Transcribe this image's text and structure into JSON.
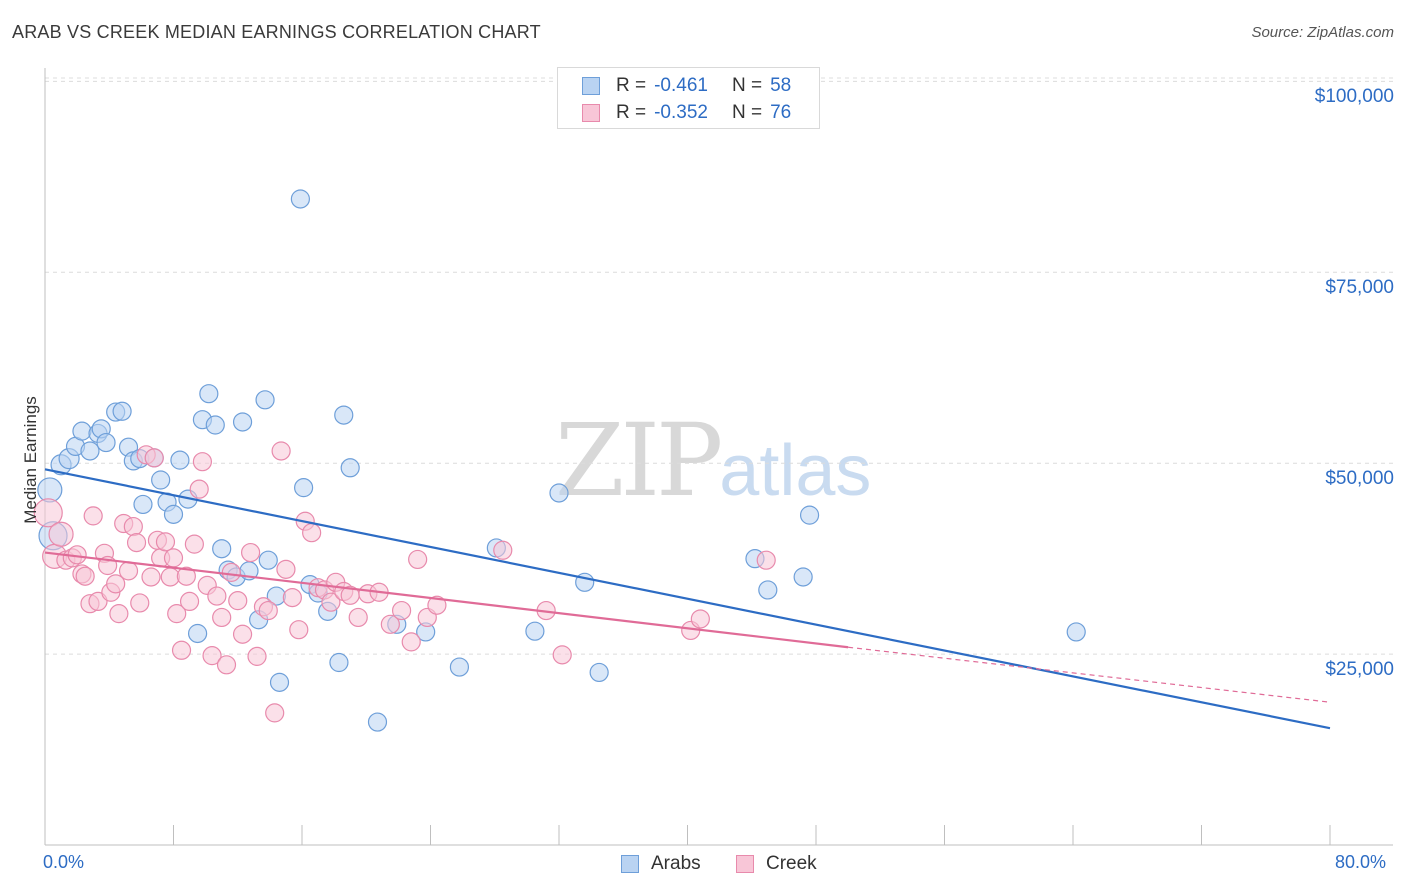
{
  "title": "ARAB VS CREEK MEDIAN EARNINGS CORRELATION CHART",
  "source": "Source: ZipAtlas.com",
  "watermark": {
    "zip": "ZIP",
    "atlas": "atlas"
  },
  "legend_top": [
    {
      "r_label": "R =",
      "r_value": "-0.461",
      "n_label": "N =",
      "n_value": "58"
    },
    {
      "r_label": "R =",
      "r_value": "-0.352",
      "n_label": "N =",
      "n_value": "76"
    }
  ],
  "colors": {
    "arab_fill": "#b9d3f2",
    "arab_stroke": "#6e9fd9",
    "arab_line": "#2d6cc4",
    "creek_fill": "#f8c6d7",
    "creek_stroke": "#e88aac",
    "creek_line": "#e06b97",
    "axis_text": "#2d6cc4",
    "grid": "#dcdcdc"
  },
  "chart_data": {
    "type": "scatter",
    "title": "ARAB VS CREEK MEDIAN EARNINGS CORRELATION CHART",
    "xlabel": "",
    "ylabel": "Median Earnings",
    "x_tick_labels": {
      "min": "0.0%",
      "max": "80.0%"
    },
    "y_tick_labels": [
      "$25,000",
      "$50,000",
      "$75,000",
      "$100,000"
    ],
    "y_ticks": [
      25000,
      50000,
      75000,
      100000
    ],
    "xlim": [
      0,
      80
    ],
    "ylim": [
      0,
      105000
    ],
    "grid": true,
    "legend_position": "bottom",
    "series": [
      {
        "name": "Arabs",
        "r": -0.461,
        "n": 58,
        "trend": {
          "x0": 0,
          "y0": 49200,
          "x1": 80,
          "y1": 15300
        },
        "points": [
          [
            0.3,
            46500
          ],
          [
            0.5,
            40500
          ],
          [
            1.0,
            49800
          ],
          [
            1.5,
            50600
          ],
          [
            1.9,
            52200
          ],
          [
            2.3,
            54200
          ],
          [
            2.8,
            51600
          ],
          [
            3.3,
            53900
          ],
          [
            3.5,
            54500
          ],
          [
            3.8,
            52700
          ],
          [
            4.4,
            56700
          ],
          [
            4.8,
            56800
          ],
          [
            5.2,
            52100
          ],
          [
            5.5,
            50300
          ],
          [
            5.9,
            50600
          ],
          [
            6.1,
            44600
          ],
          [
            6.8,
            50700
          ],
          [
            7.2,
            47800
          ],
          [
            7.6,
            44900
          ],
          [
            8.0,
            43300
          ],
          [
            8.4,
            50400
          ],
          [
            8.9,
            45300
          ],
          [
            9.5,
            27700
          ],
          [
            9.8,
            55700
          ],
          [
            10.2,
            59100
          ],
          [
            10.6,
            55000
          ],
          [
            11.0,
            38800
          ],
          [
            11.4,
            36000
          ],
          [
            11.9,
            35100
          ],
          [
            12.3,
            55400
          ],
          [
            12.7,
            35900
          ],
          [
            13.3,
            29500
          ],
          [
            13.7,
            58300
          ],
          [
            13.9,
            37300
          ],
          [
            14.4,
            32600
          ],
          [
            14.6,
            21300
          ],
          [
            15.9,
            84600
          ],
          [
            16.1,
            46800
          ],
          [
            16.5,
            34100
          ],
          [
            17.0,
            33000
          ],
          [
            17.6,
            30600
          ],
          [
            18.3,
            23900
          ],
          [
            18.6,
            56300
          ],
          [
            19.0,
            49400
          ],
          [
            20.7,
            16100
          ],
          [
            21.9,
            28900
          ],
          [
            23.7,
            27900
          ],
          [
            25.8,
            23300
          ],
          [
            28.1,
            38900
          ],
          [
            30.5,
            28000
          ],
          [
            32.0,
            46100
          ],
          [
            33.6,
            34400
          ],
          [
            34.5,
            22600
          ],
          [
            44.2,
            37500
          ],
          [
            45.0,
            33400
          ],
          [
            47.2,
            35100
          ],
          [
            47.6,
            43200
          ],
          [
            64.2,
            27900
          ]
        ],
        "point_radius": [
          12,
          14,
          10,
          10,
          9,
          9,
          9,
          9,
          9,
          9,
          9,
          9,
          9,
          9,
          9,
          9,
          9,
          9,
          9,
          9,
          9,
          9,
          9,
          9,
          9,
          9,
          9,
          9,
          9,
          9,
          9,
          9,
          9,
          9,
          9,
          9,
          9,
          9,
          9,
          9,
          9,
          9,
          9,
          9,
          9,
          9,
          9,
          9,
          9,
          9,
          9,
          9,
          9,
          9,
          9,
          9,
          9,
          9
        ]
      },
      {
        "name": "Creek",
        "r": -0.352,
        "n": 76,
        "trend": {
          "x0": 0,
          "y0": 38300,
          "x1": 50,
          "y1": 25900,
          "dash_x1": 80,
          "dash_y1": 18700
        },
        "points": [
          [
            0.2,
            43500
          ],
          [
            0.6,
            37800
          ],
          [
            1.0,
            40700
          ],
          [
            1.3,
            37300
          ],
          [
            1.7,
            37600
          ],
          [
            2.0,
            38000
          ],
          [
            2.3,
            35500
          ],
          [
            2.5,
            35200
          ],
          [
            2.8,
            31600
          ],
          [
            3.0,
            43100
          ],
          [
            3.3,
            31900
          ],
          [
            3.7,
            38200
          ],
          [
            3.9,
            36600
          ],
          [
            4.1,
            33100
          ],
          [
            4.4,
            34200
          ],
          [
            4.6,
            30300
          ],
          [
            4.9,
            42100
          ],
          [
            5.2,
            35900
          ],
          [
            5.5,
            41700
          ],
          [
            5.7,
            39600
          ],
          [
            5.9,
            31700
          ],
          [
            6.3,
            51100
          ],
          [
            6.6,
            35100
          ],
          [
            6.8,
            50700
          ],
          [
            7.0,
            39900
          ],
          [
            7.2,
            37600
          ],
          [
            7.5,
            39700
          ],
          [
            7.8,
            35100
          ],
          [
            8.0,
            37600
          ],
          [
            8.2,
            30300
          ],
          [
            8.5,
            25500
          ],
          [
            8.8,
            35200
          ],
          [
            9.0,
            31900
          ],
          [
            9.3,
            39400
          ],
          [
            9.6,
            46600
          ],
          [
            9.8,
            50200
          ],
          [
            10.1,
            34000
          ],
          [
            10.4,
            24800
          ],
          [
            10.7,
            32600
          ],
          [
            11.0,
            29800
          ],
          [
            11.3,
            23600
          ],
          [
            11.6,
            35700
          ],
          [
            12.0,
            32000
          ],
          [
            12.3,
            27600
          ],
          [
            12.8,
            38300
          ],
          [
            13.2,
            24700
          ],
          [
            13.6,
            31200
          ],
          [
            13.9,
            30700
          ],
          [
            14.3,
            17300
          ],
          [
            14.7,
            51600
          ],
          [
            15.0,
            36100
          ],
          [
            15.4,
            32400
          ],
          [
            15.8,
            28200
          ],
          [
            16.2,
            42400
          ],
          [
            16.6,
            40900
          ],
          [
            17.0,
            33700
          ],
          [
            17.4,
            33400
          ],
          [
            17.8,
            31800
          ],
          [
            18.1,
            34400
          ],
          [
            18.6,
            33200
          ],
          [
            19.0,
            32700
          ],
          [
            19.5,
            29800
          ],
          [
            20.1,
            32900
          ],
          [
            20.8,
            33100
          ],
          [
            21.5,
            28900
          ],
          [
            22.2,
            30700
          ],
          [
            22.8,
            26600
          ],
          [
            23.2,
            37400
          ],
          [
            23.8,
            29800
          ],
          [
            24.4,
            31400
          ],
          [
            28.5,
            38600
          ],
          [
            31.2,
            30700
          ],
          [
            32.2,
            24900
          ],
          [
            40.2,
            28100
          ],
          [
            40.8,
            29600
          ],
          [
            44.9,
            37300
          ]
        ],
        "point_radius": [
          14,
          12,
          12,
          9,
          9,
          9,
          9,
          9,
          9,
          9,
          9,
          9,
          9,
          9,
          9,
          9,
          9,
          9,
          9,
          9,
          9,
          9,
          9,
          9,
          9,
          9,
          9,
          9,
          9,
          9,
          9,
          9,
          9,
          9,
          9,
          9,
          9,
          9,
          9,
          9,
          9,
          9,
          9,
          9,
          9,
          9,
          9,
          9,
          9,
          9,
          9,
          9,
          9,
          9,
          9,
          9,
          9,
          9,
          9,
          9,
          9,
          9,
          9,
          9,
          9,
          9,
          9,
          9,
          9,
          9,
          9,
          9,
          9,
          9,
          9,
          9
        ]
      }
    ]
  }
}
